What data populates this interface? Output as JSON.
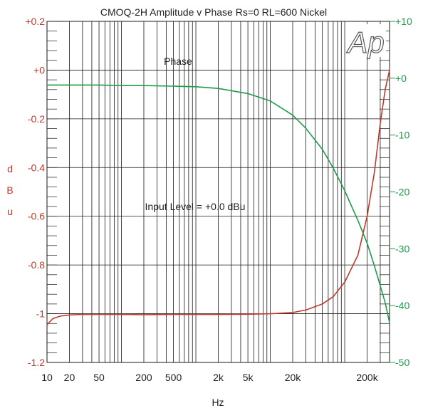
{
  "chart_data": {
    "type": "line",
    "title": "CMOQ-2H   Amplitude v Phase Rs=0 RL=600 Nickel",
    "xlabel": "Hz",
    "ylabel_left_letters": [
      "d",
      "B",
      "u"
    ],
    "x_scale": "log",
    "xlim": [
      10,
      400000
    ],
    "ylim_left": [
      -1.2,
      0.2
    ],
    "ylim_right": [
      -50,
      10
    ],
    "grid": true,
    "x_tick_labels": [
      {
        "value": 10,
        "label": "10"
      },
      {
        "value": 20,
        "label": "20"
      },
      {
        "value": 50,
        "label": "50"
      },
      {
        "value": 200,
        "label": "200"
      },
      {
        "value": 500,
        "label": "500"
      },
      {
        "value": 2000,
        "label": "2k"
      },
      {
        "value": 5000,
        "label": "5k"
      },
      {
        "value": 20000,
        "label": "20k"
      },
      {
        "value": 200000,
        "label": "200k"
      }
    ],
    "y_left_tick_labels": [
      {
        "value": 0.2,
        "label": "+0.2"
      },
      {
        "value": 0.0,
        "label": "+0"
      },
      {
        "value": -0.2,
        "label": "-0.2"
      },
      {
        "value": -0.4,
        "label": "-0.4"
      },
      {
        "value": -0.6,
        "label": "-0.6"
      },
      {
        "value": -0.8,
        "label": "-0.8"
      },
      {
        "value": -1.0,
        "label": "-1"
      },
      {
        "value": -1.2,
        "label": "-1.2"
      }
    ],
    "y_right_tick_labels": [
      {
        "value": 10,
        "label": "+10"
      },
      {
        "value": 0,
        "label": "+0"
      },
      {
        "value": -10,
        "label": "-10"
      },
      {
        "value": -20,
        "label": "-20"
      },
      {
        "value": -30,
        "label": "-30"
      },
      {
        "value": -40,
        "label": "-40"
      },
      {
        "value": -50,
        "label": "-50"
      }
    ],
    "annotations": [
      {
        "text": "Phase",
        "color": "#1e9b4a"
      },
      {
        "text": "Input Level = +0.0 dBu",
        "color": "#222222"
      }
    ],
    "logo_text": "Ap",
    "colors": {
      "amplitude": "#c0392b",
      "phase": "#1e9b4a",
      "grid": "#1a1a1a",
      "title": "#222222"
    },
    "series": [
      {
        "axis": "left",
        "color": "#c0392b",
        "x": [
          10,
          12,
          15,
          20,
          30,
          50,
          100,
          200,
          500,
          1000,
          2000,
          5000,
          10000,
          20000,
          30000,
          50000,
          70000,
          100000,
          150000,
          200000,
          250000,
          300000,
          350000,
          400000
        ],
        "y": [
          -1.045,
          -1.02,
          -1.01,
          -1.005,
          -1.003,
          -1.003,
          -1.003,
          -1.004,
          -1.003,
          -1.003,
          -1.003,
          -1.002,
          -1.0,
          -0.995,
          -0.985,
          -0.96,
          -0.93,
          -0.87,
          -0.76,
          -0.6,
          -0.42,
          -0.22,
          -0.08,
          0.0
        ]
      },
      {
        "axis": "right",
        "color": "#1e9b4a",
        "x": [
          10,
          20,
          50,
          100,
          200,
          500,
          1000,
          2000,
          5000,
          10000,
          20000,
          30000,
          50000,
          70000,
          100000,
          150000,
          200000,
          250000,
          300000,
          350000,
          400000
        ],
        "y": [
          -1.2,
          -1.2,
          -1.2,
          -1.3,
          -1.3,
          -1.4,
          -1.5,
          -1.8,
          -2.7,
          -4.0,
          -6.5,
          -8.8,
          -12.5,
          -15.8,
          -19.8,
          -25.0,
          -29.0,
          -33.0,
          -36.5,
          -39.5,
          -43.0
        ]
      }
    ]
  }
}
